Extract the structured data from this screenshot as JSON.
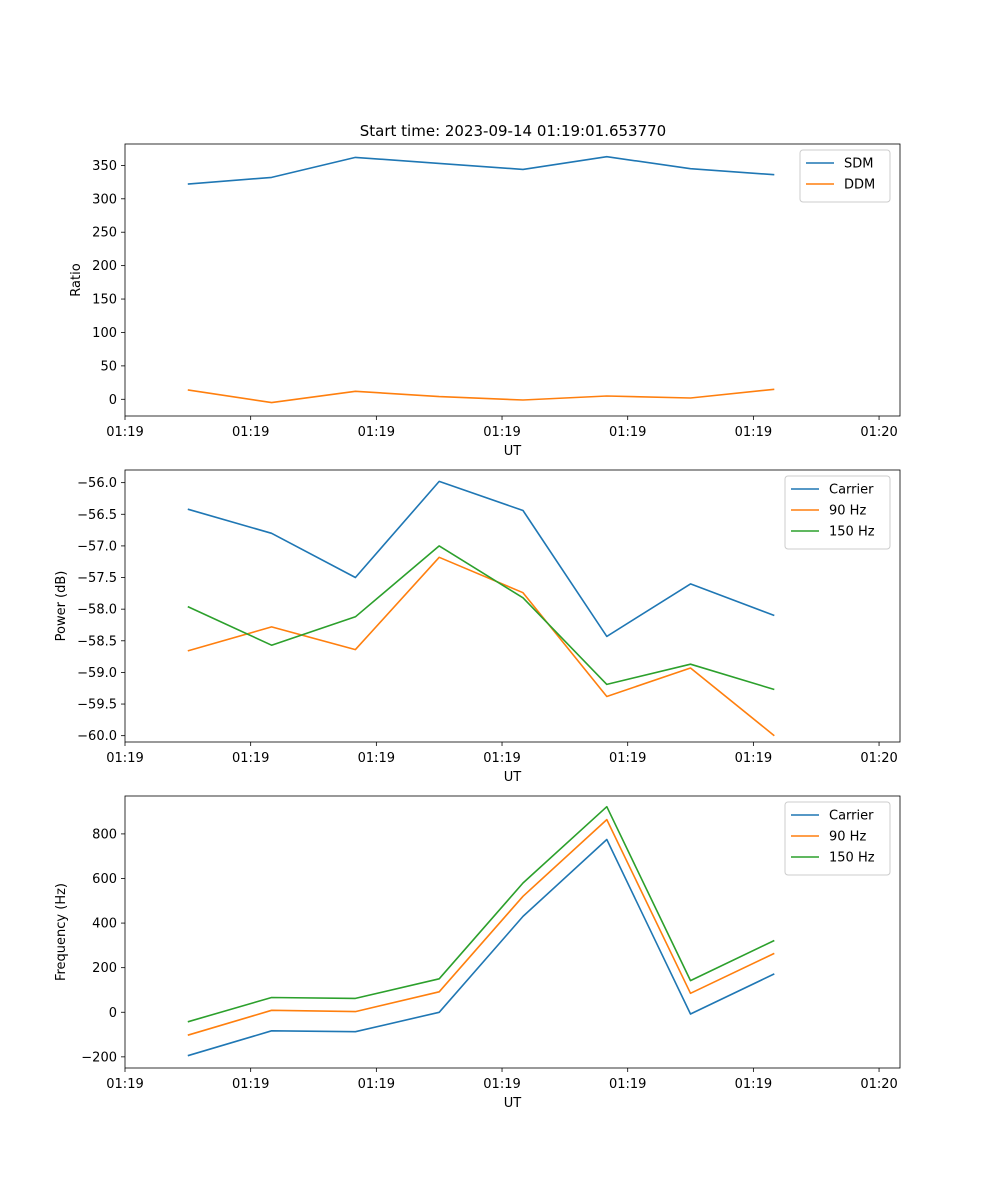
{
  "figure": {
    "title": "Start time: 2023-09-14 01:19:01.653770"
  },
  "colors": {
    "blue": "#1f77b4",
    "orange": "#ff7f0e",
    "green": "#2ca02c"
  },
  "chart_data": [
    {
      "type": "line",
      "title": "Start time: 2023-09-14 01:19:01.653770",
      "xlabel": "UT",
      "ylabel": "Ratio",
      "x": [
        0,
        1,
        2,
        3,
        4,
        5,
        6,
        7
      ],
      "xlim": [
        -0.75,
        8.5
      ],
      "x_ticks": [
        -0.75,
        0.75,
        2.25,
        3.75,
        5.25,
        6.75,
        8.25
      ],
      "x_tick_labels": [
        "01:19",
        "01:19",
        "01:19",
        "01:19",
        "01:19",
        "01:19",
        "01:20"
      ],
      "ylim": [
        -25,
        382
      ],
      "y_ticks": [
        0,
        50,
        100,
        150,
        200,
        250,
        300,
        350
      ],
      "y_tick_labels": [
        "0",
        "50",
        "100",
        "150",
        "200",
        "250",
        "300",
        "350"
      ],
      "legend_position": "top-right",
      "series": [
        {
          "name": "SDM",
          "color": "#1f77b4",
          "values": [
            322,
            332,
            362,
            353,
            344,
            363,
            345,
            336
          ]
        },
        {
          "name": "DDM",
          "color": "#ff7f0e",
          "values": [
            14,
            -5,
            12,
            4,
            -1,
            5,
            2,
            15
          ]
        }
      ]
    },
    {
      "type": "line",
      "title": "",
      "xlabel": "UT",
      "ylabel": "Power (dB)",
      "x": [
        0,
        1,
        2,
        3,
        4,
        5,
        6,
        7
      ],
      "xlim": [
        -0.75,
        8.5
      ],
      "x_ticks": [
        -0.75,
        0.75,
        2.25,
        3.75,
        5.25,
        6.75,
        8.25
      ],
      "x_tick_labels": [
        "01:19",
        "01:19",
        "01:19",
        "01:19",
        "01:19",
        "01:19",
        "01:20"
      ],
      "ylim": [
        -60.1,
        -55.8
      ],
      "y_ticks": [
        -60.0,
        -59.5,
        -59.0,
        -58.5,
        -58.0,
        -57.5,
        -57.0,
        -56.5,
        -56.0
      ],
      "y_tick_labels": [
        "−60.0",
        "−59.5",
        "−59.0",
        "−58.5",
        "−58.0",
        "−57.5",
        "−57.0",
        "−56.5",
        "−56.0"
      ],
      "legend_position": "top-right",
      "series": [
        {
          "name": "Carrier",
          "color": "#1f77b4",
          "values": [
            -56.42,
            -56.8,
            -57.5,
            -55.98,
            -56.44,
            -58.43,
            -57.6,
            -58.1
          ]
        },
        {
          "name": "90 Hz",
          "color": "#ff7f0e",
          "values": [
            -58.66,
            -58.28,
            -58.64,
            -57.18,
            -57.74,
            -59.38,
            -58.93,
            -60.0
          ]
        },
        {
          "name": "150 Hz",
          "color": "#2ca02c",
          "values": [
            -57.96,
            -58.57,
            -58.12,
            -57.0,
            -57.82,
            -59.19,
            -58.87,
            -59.27
          ]
        }
      ]
    },
    {
      "type": "line",
      "title": "",
      "xlabel": "UT",
      "ylabel": "Frequency (Hz)",
      "x": [
        0,
        1,
        2,
        3,
        4,
        5,
        6,
        7
      ],
      "xlim": [
        -0.75,
        8.5
      ],
      "x_ticks": [
        -0.75,
        0.75,
        2.25,
        3.75,
        5.25,
        6.75,
        8.25
      ],
      "x_tick_labels": [
        "01:19",
        "01:19",
        "01:19",
        "01:19",
        "01:19",
        "01:19",
        "01:20"
      ],
      "ylim": [
        -250,
        970
      ],
      "y_ticks": [
        -200,
        0,
        200,
        400,
        600,
        800
      ],
      "y_tick_labels": [
        "−200",
        "0",
        "200",
        "400",
        "600",
        "800"
      ],
      "legend_position": "top-right",
      "series": [
        {
          "name": "Carrier",
          "color": "#1f77b4",
          "values": [
            -195,
            -83,
            -87,
            0,
            430,
            775,
            -8,
            172
          ]
        },
        {
          "name": "90 Hz",
          "color": "#ff7f0e",
          "values": [
            -103,
            9,
            3,
            92,
            520,
            864,
            85,
            264
          ]
        },
        {
          "name": "150 Hz",
          "color": "#2ca02c",
          "values": [
            -43,
            66,
            62,
            150,
            580,
            922,
            142,
            322
          ]
        }
      ]
    }
  ]
}
